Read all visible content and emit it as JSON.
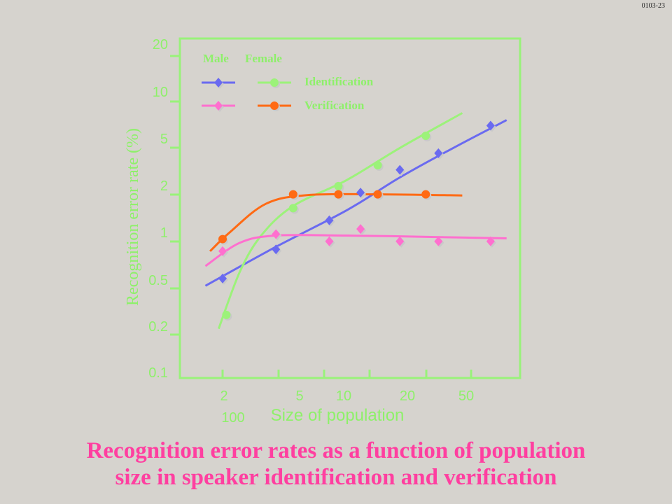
{
  "slide_id": "0103-23",
  "caption": {
    "line1": "Recognition error rates as a function of population",
    "line2": "size in speaker identification and verification"
  },
  "chart_data": {
    "type": "line",
    "title": "",
    "xlabel": "Size of population",
    "ylabel": "Recognition error rate (%)",
    "x_scale": "log",
    "y_scale": "log",
    "x_tick_labels": [
      "2",
      "5",
      "10",
      "20",
      "50",
      "100"
    ],
    "y_tick_labels": [
      "0.1",
      "0.2",
      "0.5",
      "1",
      "2",
      "5",
      "10",
      "20"
    ],
    "xlim": [
      1.5,
      100
    ],
    "ylim": [
      0.1,
      20
    ],
    "grid": false,
    "legend": {
      "placement": "top-left",
      "header_male": "Male",
      "header_female": "Female",
      "row1_label": "Identification",
      "row2_label": "Verification"
    },
    "colors": {
      "male_identification": "#6a6af0",
      "female_identification": "#9cf27a",
      "male_verification": "#ff6fcf",
      "female_verification": "#ff6a14",
      "frame": "#99f27a",
      "label": "#8ef06a"
    },
    "series": [
      {
        "name": "Male Identification",
        "marker": "diamond",
        "points": [
          [
            2,
            0.45
          ],
          [
            4,
            0.72
          ],
          [
            8,
            1.15
          ],
          [
            12,
            1.8
          ],
          [
            20,
            2.6
          ],
          [
            33,
            3.4
          ],
          [
            65,
            5.3
          ]
        ],
        "curve": [
          [
            1.6,
            0.4
          ],
          [
            4,
            0.75
          ],
          [
            10,
            1.35
          ],
          [
            20,
            2.3
          ],
          [
            40,
            3.7
          ],
          [
            80,
            5.8
          ]
        ]
      },
      {
        "name": "Female Identification",
        "marker": "circle",
        "points": [
          [
            2.1,
            0.25
          ],
          [
            5,
            1.4
          ],
          [
            9,
            2.0
          ],
          [
            15,
            2.8
          ],
          [
            28,
            4.5
          ]
        ],
        "curve": [
          [
            1.9,
            0.2
          ],
          [
            2.5,
            0.5
          ],
          [
            3.3,
            0.9
          ],
          [
            5,
            1.45
          ],
          [
            10,
            2.2
          ],
          [
            20,
            3.7
          ],
          [
            45,
            6.5
          ]
        ]
      },
      {
        "name": "Male Verification",
        "marker": "diamond",
        "points": [
          [
            2,
            0.7
          ],
          [
            4,
            0.92
          ],
          [
            8,
            0.82
          ],
          [
            12,
            1.0
          ],
          [
            20,
            0.82
          ],
          [
            33,
            0.82
          ],
          [
            65,
            0.82
          ]
        ],
        "curve": [
          [
            1.6,
            0.55
          ],
          [
            2.5,
            0.8
          ],
          [
            4,
            0.9
          ],
          [
            10,
            0.9
          ],
          [
            30,
            0.88
          ],
          [
            80,
            0.86
          ]
        ]
      },
      {
        "name": "Female Verification",
        "marker": "circle",
        "points": [
          [
            2,
            0.85
          ],
          [
            5,
            1.75
          ],
          [
            9,
            1.75
          ],
          [
            15,
            1.75
          ],
          [
            28,
            1.75
          ]
        ],
        "curve": [
          [
            1.7,
            0.7
          ],
          [
            2.2,
            0.95
          ],
          [
            3.5,
            1.5
          ],
          [
            6,
            1.73
          ],
          [
            15,
            1.75
          ],
          [
            45,
            1.72
          ]
        ]
      }
    ]
  }
}
